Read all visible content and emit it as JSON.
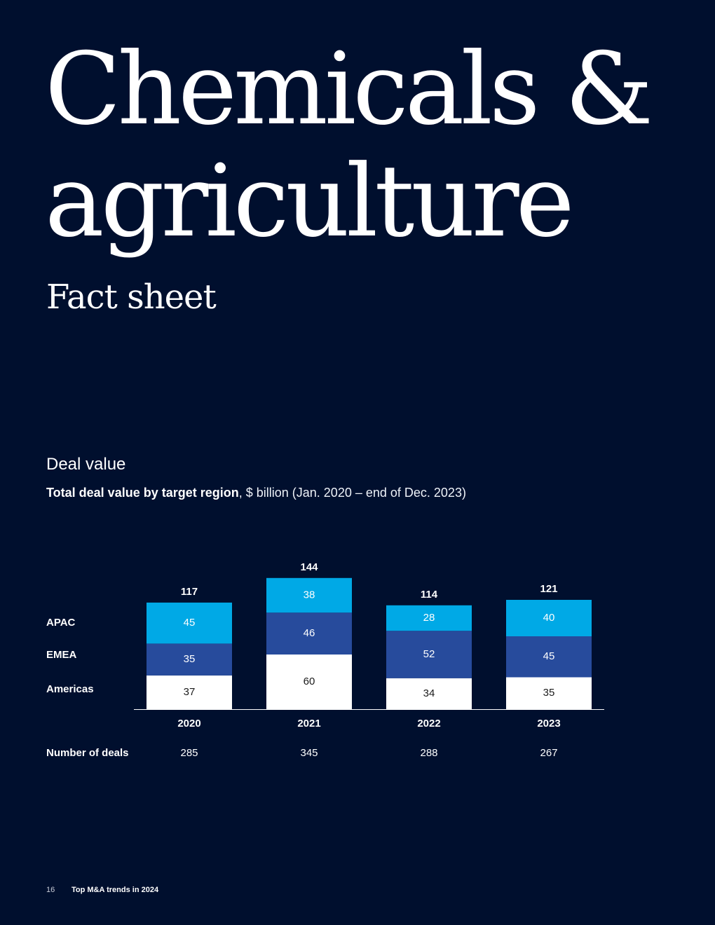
{
  "title": "Chemicals & agriculture",
  "subtitle": "Fact sheet",
  "section_heading": "Deal value",
  "chart_caption": {
    "bold": "Total deal value by target region",
    "rest": ", $ billion (Jan. 2020 – end of Dec. 2023)"
  },
  "chart_data": {
    "type": "bar",
    "stacked": true,
    "categories": [
      "2020",
      "2021",
      "2022",
      "2023"
    ],
    "series": [
      {
        "name": "Americas",
        "values": [
          37,
          60,
          34,
          35
        ],
        "color": "#ffffff"
      },
      {
        "name": "EMEA",
        "values": [
          35,
          46,
          52,
          45
        ],
        "color": "#274b9c"
      },
      {
        "name": "APAC",
        "values": [
          45,
          38,
          28,
          40
        ],
        "color": "#00a9e6"
      }
    ],
    "totals": [
      117,
      144,
      114,
      121
    ],
    "row_label": "Number of deals",
    "number_of_deals": [
      285,
      345,
      288,
      267
    ],
    "legend_placement": "left"
  },
  "colors": {
    "background": "#000f2e",
    "americas": "#ffffff",
    "emea": "#274b9c",
    "apac": "#00a9e6"
  },
  "footer": {
    "page_number": "16",
    "report_title": "Top M&A trends in 2024"
  }
}
